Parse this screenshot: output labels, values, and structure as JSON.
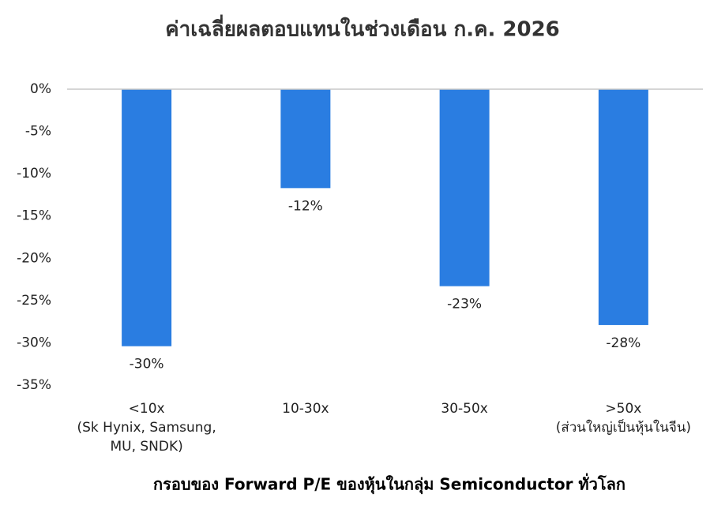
{
  "chart_data": {
    "type": "bar",
    "title": "ค่าเฉลี่ยผลตอบแทนในช่วงเดือน ก.ค. 2026",
    "x_label": "กรอบของ Forward P/E ของหุ้นในกลุ่ม Semiconductor ทั่วโลก",
    "categories": [
      [
        "<10x",
        "(Sk Hynix, Samsung,",
        "MU, SNDK)"
      ],
      [
        "10-30x"
      ],
      [
        "30-50x"
      ],
      [
        ">50x",
        "(ส่วนใหญ่เป็นหุ้นในจีน)"
      ]
    ],
    "values": [
      -30.4,
      -11.7,
      -23.3,
      -27.9
    ],
    "value_labels": [
      "-30%",
      "-12%",
      "-23%",
      "-28%"
    ],
    "color": "#2a7de1",
    "ylim": [
      -35,
      0
    ],
    "yticks": [
      {
        "value": 0,
        "label": "0%"
      },
      {
        "value": -5,
        "label": "-5%"
      },
      {
        "value": -10,
        "label": "-10%"
      },
      {
        "value": -15,
        "label": "-15%"
      },
      {
        "value": -20,
        "label": "-20%"
      },
      {
        "value": -25,
        "label": "-25%"
      },
      {
        "value": -30,
        "label": "-30%"
      },
      {
        "value": -35,
        "label": "-35%"
      }
    ],
    "grid": false
  }
}
